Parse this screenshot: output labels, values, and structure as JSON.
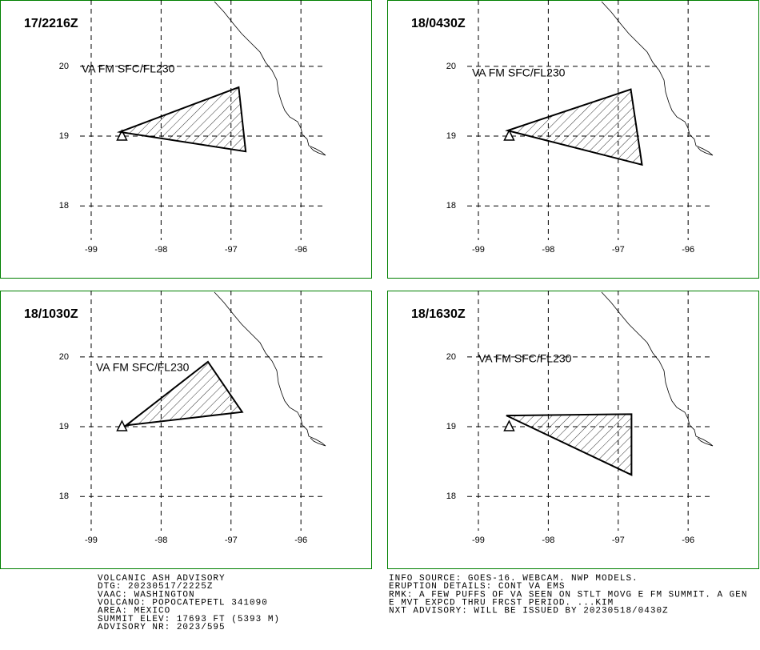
{
  "map": {
    "xlim": [
      -99.16,
      -95.67
    ],
    "ylim": [
      17.51,
      20.95
    ],
    "xticks": [
      -99,
      -98,
      -97,
      -96
    ],
    "yticks": [
      18,
      19,
      20
    ],
    "volcano": [
      -98.56,
      19.0
    ]
  },
  "panels": [
    {
      "time": "17/2216Z",
      "label": "VA FM SFC/FL230",
      "polygon": [
        [
          -98.59,
          19.06
        ],
        [
          -96.89,
          19.7
        ],
        [
          -96.79,
          18.78
        ]
      ]
    },
    {
      "time": "18/0430Z",
      "label": "VA FM SFC/FL230",
      "polygon": [
        [
          -98.58,
          19.08
        ],
        [
          -96.82,
          19.67
        ],
        [
          -96.66,
          18.59
        ]
      ]
    },
    {
      "time": "18/1030Z",
      "label": "VA FM SFC/FL230",
      "polygon": [
        [
          -98.5,
          19.02
        ],
        [
          -97.33,
          19.93
        ],
        [
          -96.84,
          19.21
        ]
      ]
    },
    {
      "time": "18/1630Z",
      "label": "VA FM SFC/FL230",
      "polygon": [
        [
          -98.6,
          19.16
        ],
        [
          -96.81,
          19.18
        ],
        [
          -96.81,
          18.31
        ]
      ]
    }
  ],
  "advisory": {
    "left": [
      "VOLCANIC ASH ADVISORY",
      "DTG: 20230517/2225Z",
      "VAAC: WASHINGTON",
      "VOLCANO: POPOCATEPETL 341090",
      "AREA: MEXICO",
      "SUMMIT ELEV: 17693 FT (5393 M)",
      "ADVISORY NR: 2023/595"
    ],
    "right": [
      "INFO SOURCE: GOES-16. WEBCAM. NWP MODELS.",
      "ERUPTION DETAILS: CONT VA EMS",
      "RMK: A FEW PUFFS OF VA SEEN ON STLT MOVG E FM SUMMIT. A GEN",
      "E MVT EXPCD THRU FRCST PERIOD. ...KIM",
      "NXT ADVISORY: WILL BE ISSUED BY 20230518/0430Z"
    ]
  }
}
